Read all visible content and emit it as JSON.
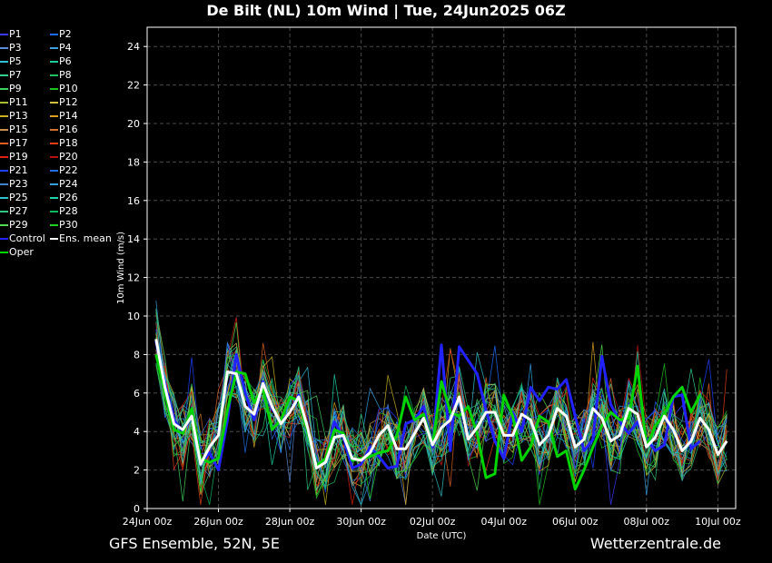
{
  "title": "De Bilt  (NL)  10m Wind | Tue, 24Jun2025 06Z",
  "footer": {
    "left": "GFS Ensemble, 52N, 5E",
    "right": "Wetterzentrale.de"
  },
  "chart_data": {
    "type": "line",
    "xlabel": "Date (UTC)",
    "ylabel": "10m Wind (m/s)",
    "ylim": [
      0,
      25
    ],
    "yticks": [
      0,
      2,
      4,
      6,
      8,
      10,
      12,
      14,
      16,
      18,
      20,
      22,
      24
    ],
    "xlim": [
      "2025-06-24 00",
      "2025-07-10 12"
    ],
    "xticks": [
      {
        "date": "2025-06-24 00",
        "label": "24Jun 00z"
      },
      {
        "date": "2025-06-26 00",
        "label": "26Jun 00z"
      },
      {
        "date": "2025-06-28 00",
        "label": "28Jun 00z"
      },
      {
        "date": "2025-06-30 00",
        "label": "30Jun 00z"
      },
      {
        "date": "2025-07-02 00",
        "label": "02Jul 00z"
      },
      {
        "date": "2025-07-04 00",
        "label": "04Jul 00z"
      },
      {
        "date": "2025-07-06 00",
        "label": "06Jul 00z"
      },
      {
        "date": "2025-07-08 00",
        "label": "08Jul 00z"
      },
      {
        "date": "2025-07-10 00",
        "label": "10Jul 00z"
      }
    ],
    "grid": true,
    "legend_placement": "left",
    "x_start": "2025-06-24 06",
    "x_step_hours": 6,
    "series": [
      {
        "name": "Control",
        "color": "#2222ff",
        "width": 3,
        "values": [
          8.7,
          6.5,
          4.6,
          4.0,
          4.8,
          2.3,
          2.9,
          2.0,
          4.6,
          8.0,
          6.0,
          4.6,
          6.6,
          5.2,
          4.5,
          5.0,
          5.9,
          4.0,
          2.2,
          2.4,
          4.5,
          3.7,
          2.1,
          2.3,
          3.2,
          2.7,
          2.1,
          2.2,
          4.4,
          4.6,
          5.3,
          3.2,
          8.5,
          3.0,
          8.4,
          7.7,
          7.0,
          5.1,
          3.5,
          2.6,
          5.0,
          4.0,
          6.3,
          5.6,
          6.3,
          6.2,
          6.7,
          4.8,
          3.0,
          3.6,
          7.9,
          5.4,
          4.5,
          3.9,
          4.5,
          3.6,
          3.0,
          3.3,
          5.8,
          5.9,
          3.1,
          3.5
        ]
      },
      {
        "name": "Oper",
        "color": "#00d400",
        "width": 3,
        "values": [
          8.0,
          6.0,
          4.1,
          3.9,
          5.2,
          2.6,
          2.4,
          2.6,
          5.1,
          7.1,
          7.0,
          5.5,
          6.2,
          4.1,
          4.6,
          5.8,
          5.6,
          4.0,
          2.2,
          2.6,
          4.1,
          3.9,
          2.5,
          2.6,
          2.7,
          2.9,
          3.0,
          3.8,
          5.8,
          4.6,
          4.9,
          3.3,
          6.6,
          5.0,
          4.8,
          5.3,
          3.9,
          1.6,
          1.8,
          5.9,
          4.8,
          2.5,
          3.2,
          4.8,
          4.5,
          2.7,
          3.0,
          1.0,
          2.0,
          3.2,
          4.3,
          5.0,
          4.6,
          4.7,
          7.4,
          3.2,
          4.3,
          4.9,
          5.8,
          6.3,
          5.0,
          5.9
        ]
      },
      {
        "name": "Ens. mean",
        "color": "#ffffff",
        "width": 3,
        "values": [
          8.8,
          6.3,
          4.4,
          4.1,
          4.8,
          2.3,
          3.2,
          3.8,
          7.1,
          7.0,
          5.3,
          4.9,
          6.5,
          5.3,
          4.4,
          5.0,
          5.8,
          4.2,
          2.1,
          2.4,
          3.7,
          3.8,
          2.6,
          2.5,
          2.9,
          3.8,
          4.3,
          3.1,
          3.1,
          3.9,
          4.7,
          3.3,
          4.2,
          4.6,
          5.8,
          3.6,
          4.2,
          5.0,
          5.0,
          3.8,
          3.8,
          4.9,
          4.6,
          3.3,
          3.8,
          5.2,
          4.8,
          3.2,
          3.6,
          5.2,
          4.7,
          3.5,
          3.8,
          5.2,
          4.9,
          3.2,
          3.7,
          4.8,
          4.1,
          3.0,
          3.5,
          4.7,
          4.1,
          2.8,
          3.5
        ]
      }
    ]
  },
  "legend": {
    "members": [
      {
        "name": "P1",
        "color": "#3a3aff"
      },
      {
        "name": "P2",
        "color": "#1e6cff"
      },
      {
        "name": "P3",
        "color": "#5a8cd8"
      },
      {
        "name": "P4",
        "color": "#3aa0e0"
      },
      {
        "name": "P5",
        "color": "#30c0d8"
      },
      {
        "name": "P6",
        "color": "#20c8a0"
      },
      {
        "name": "P7",
        "color": "#30d090"
      },
      {
        "name": "P8",
        "color": "#20c060"
      },
      {
        "name": "P9",
        "color": "#40d060"
      },
      {
        "name": "P10",
        "color": "#20c020"
      },
      {
        "name": "P11",
        "color": "#a8c030"
      },
      {
        "name": "P12",
        "color": "#d0c040"
      },
      {
        "name": "P13",
        "color": "#c8b020"
      },
      {
        "name": "P14",
        "color": "#d8a020"
      },
      {
        "name": "P15",
        "color": "#c89050"
      },
      {
        "name": "P16",
        "color": "#d07030"
      },
      {
        "name": "P17",
        "color": "#e06020"
      },
      {
        "name": "P18",
        "color": "#e04018"
      },
      {
        "name": "P19",
        "color": "#e02010"
      },
      {
        "name": "P20",
        "color": "#b81010"
      },
      {
        "name": "P21",
        "color": "#2040ff"
      },
      {
        "name": "P22",
        "color": "#2070e0"
      },
      {
        "name": "P23",
        "color": "#4080d0"
      },
      {
        "name": "P24",
        "color": "#30a0e0"
      },
      {
        "name": "P25",
        "color": "#30c0c8"
      },
      {
        "name": "P26",
        "color": "#20d0a8"
      },
      {
        "name": "P27",
        "color": "#30c880"
      },
      {
        "name": "P28",
        "color": "#10b860"
      },
      {
        "name": "P29",
        "color": "#50d850"
      },
      {
        "name": "P30",
        "color": "#20d020"
      },
      {
        "name": "Control",
        "color": "#2222ff"
      },
      {
        "name": "Ens. mean",
        "color": "#ffffff"
      },
      {
        "name": "Oper",
        "color": "#00d400"
      }
    ]
  }
}
